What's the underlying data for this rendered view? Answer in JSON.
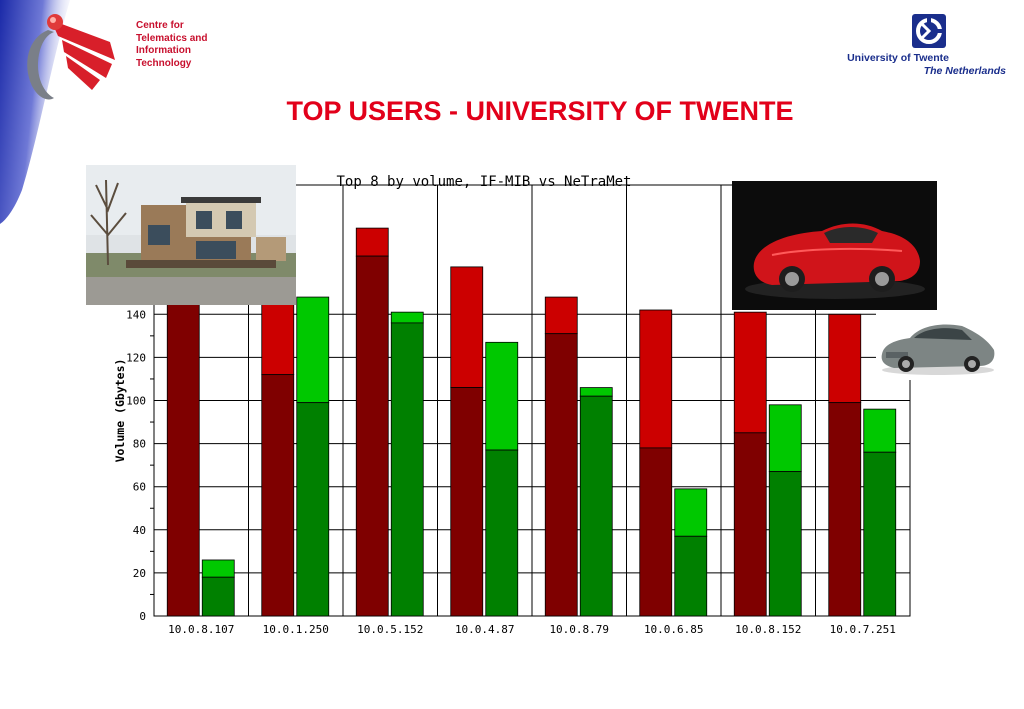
{
  "header": {
    "org_lines": [
      "Centre for",
      "Telematics and",
      "Information",
      "Technology"
    ],
    "university": "University of Twente",
    "country": "The Netherlands"
  },
  "slide_title": "TOP USERS - UNIVERSITY OF TWENTE",
  "colors": {
    "title_red": "#e2001a",
    "ctit_red": "#c8102e",
    "ut_blue": "#1a2e8c",
    "dark_red": "#7f0000",
    "red": "#cc0000",
    "dark_green": "#008000",
    "green": "#00c800"
  },
  "images": [
    {
      "name": "house-photo",
      "description": "modern house"
    },
    {
      "name": "red-car-photo",
      "description": "red sports car"
    },
    {
      "name": "grey-car-photo",
      "description": "grey sedan"
    }
  ],
  "chart_data": {
    "type": "bar",
    "title": "Top 8 by volume, IF-MIB vs NeTraMet",
    "xlabel": "",
    "ylabel": "Volume (Gbytes)",
    "ylim": [
      0,
      200
    ],
    "yticks": [
      0,
      20,
      40,
      60,
      80,
      100,
      120,
      140
    ],
    "categories": [
      "10.0.8.107",
      "10.0.1.250",
      "10.0.5.152",
      "10.0.4.87",
      "10.0.8.79",
      "10.0.6.85",
      "10.0.8.152",
      "10.0.7.251"
    ],
    "series": [
      {
        "name": "",
        "total": [
          158,
          186,
          180,
          162,
          148,
          142,
          141,
          140
        ],
        "lower": [
          150,
          112,
          167,
          106,
          131,
          78,
          85,
          99
        ],
        "lower_color": "#7f0000",
        "upper_color": "#cc0000"
      },
      {
        "name": "",
        "total": [
          26,
          148,
          141,
          127,
          106,
          59,
          98,
          96
        ],
        "lower": [
          18,
          99,
          136,
          77,
          102,
          37,
          67,
          76
        ],
        "lower_color": "#008000",
        "upper_color": "#00c800"
      }
    ],
    "grid": true
  }
}
